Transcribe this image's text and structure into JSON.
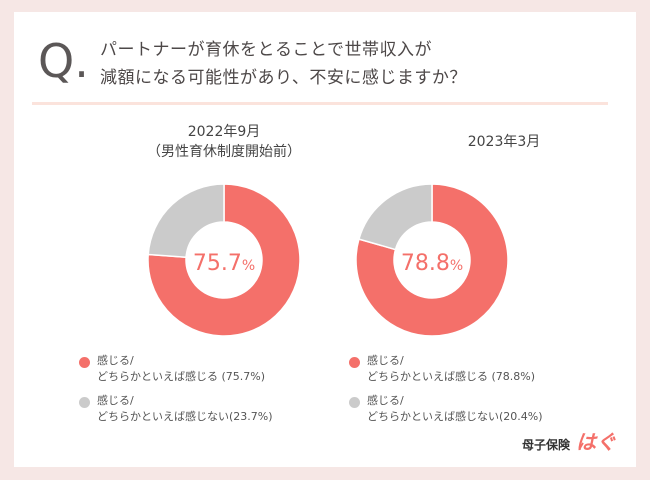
{
  "question": {
    "letter": "Q.",
    "line1": "パートナーが育休をとることで世帯収入が",
    "line2": "減額になる可能性があり、不安に感じますか？"
  },
  "colors": {
    "yes": "#f4706a",
    "no": "#cbcbcb",
    "center_text": "#f4706a"
  },
  "chart_data": [
    {
      "type": "pie",
      "title_line1": "2022年9月",
      "title_line2": "（男性育休制度開始前）",
      "center_label": "75.7",
      "center_unit": "%",
      "slices": [
        {
          "label": "感じる/\nどちらかといえば感じる",
          "value": 75.7,
          "legend_line1": "感じる/",
          "legend_line2": "どちらかといえば感じる (75.7%)"
        },
        {
          "label": "感じる/\nどちらかといえば感じない",
          "value": 23.7,
          "legend_line1": "感じる/",
          "legend_line2": "どちらかといえば感じない(23.7%)"
        }
      ]
    },
    {
      "type": "pie",
      "title_line1": "2023年3月",
      "title_line2": "",
      "center_label": "78.8",
      "center_unit": "%",
      "slices": [
        {
          "label": "感じる/\nどちらかといえば感じる",
          "value": 78.8,
          "legend_line1": "感じる/",
          "legend_line2": "どちらかといえば感じる (78.8%)"
        },
        {
          "label": "感じる/\nどちらかといえば感じない",
          "value": 20.4,
          "legend_line1": "感じる/",
          "legend_line2": "どちらかといえば感じない(20.4%)"
        }
      ]
    }
  ],
  "logo": {
    "text": "母子保険",
    "mark": "はぐ"
  }
}
